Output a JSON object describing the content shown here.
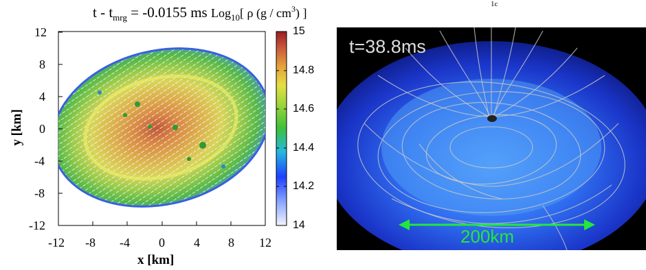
{
  "left_panel": {
    "title_prefix": "t - t",
    "title_sub": "mrg",
    "title_eq": " = -0.0155 ms  ",
    "title_log": "Log",
    "title_log_sub": "10",
    "title_rho": "[ ρ (g / cm",
    "title_rho_sup": "3",
    "title_close": ") ]",
    "x_label": "x [km]",
    "y_label": "y [km]",
    "x_ticks": [
      "-12",
      "-8",
      "-4",
      "0",
      "4",
      "8",
      "12"
    ],
    "y_ticks": [
      "12",
      "8",
      "4",
      "0",
      "-4",
      "-8",
      "-12"
    ],
    "colorbar_ticks": [
      "15",
      "14.8",
      "14.6",
      "14.4",
      "14.2",
      "14"
    ]
  },
  "right_panel": {
    "time_label": "t=38.8ms",
    "scale_label": "200km"
  },
  "corner_mark": "1c"
}
